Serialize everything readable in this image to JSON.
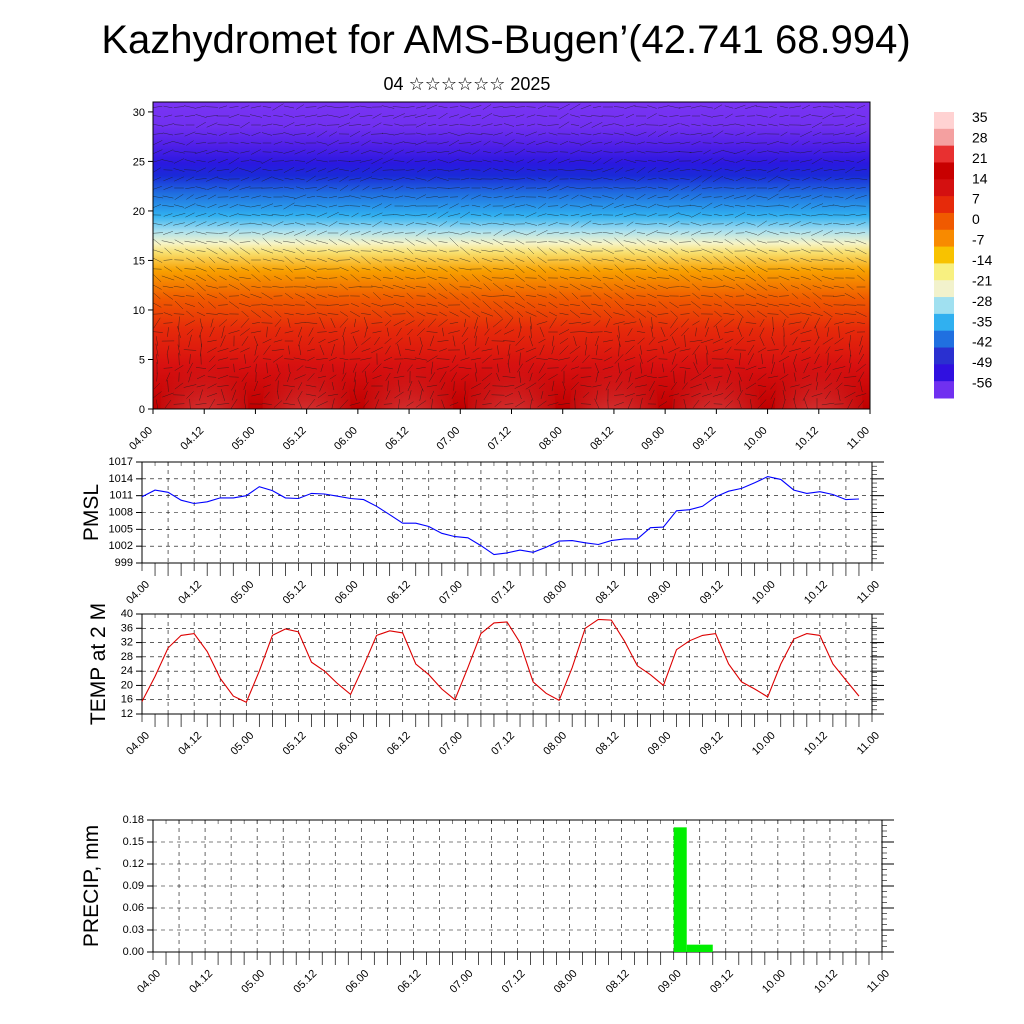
{
  "header": {
    "title": "Kazhydromet for AMS-Bugen’(42.741 68.994)",
    "subtitle": "04 ☆☆☆☆☆☆ 2025"
  },
  "x_ticks": [
    "04.00",
    "04.12",
    "05.00",
    "05.12",
    "06.00",
    "06.12",
    "07.00",
    "07.12",
    "08.00",
    "08.12",
    "09.00",
    "09.12",
    "10.00",
    "10.12",
    "11.00"
  ],
  "chart_data": [
    {
      "type": "heatmap",
      "name": "cross-section",
      "x_range": [
        0,
        168
      ],
      "ylim": [
        0,
        31
      ],
      "y_ticks": [
        0,
        5,
        10,
        15,
        20,
        25,
        30
      ],
      "colorbar": {
        "labels": [
          "35",
          "28",
          "21",
          "14",
          "7",
          "0",
          "-7",
          "-14",
          "-21",
          "-28",
          "-35",
          "-42",
          "-49",
          "-56"
        ],
        "colors": [
          "#ffd2d2",
          "#e83030",
          "#c80000",
          "#e62a0a",
          "#f05a00",
          "#f88a00",
          "#f8c200",
          "#f8f080",
          "#a0e0f0",
          "#30b0f0",
          "#2070e0",
          "#3040d8",
          "#3010e0",
          "#7030f0"
        ]
      },
      "warm_cores_x": [
        12,
        36,
        60,
        84,
        108,
        132,
        156
      ],
      "wind_vectors": true
    },
    {
      "type": "line",
      "ylabel": "PMSL",
      "ylim": [
        999,
        1017
      ],
      "y_ticks": [
        999,
        1002,
        1005,
        1008,
        1011,
        1014,
        1017
      ],
      "color": "#0000ff",
      "x": [
        0,
        3,
        6,
        9,
        12,
        15,
        18,
        21,
        24,
        27,
        30,
        33,
        36,
        39,
        42,
        45,
        48,
        51,
        54,
        57,
        60,
        63,
        66,
        69,
        72,
        75,
        78,
        81,
        84,
        87,
        90,
        93,
        96,
        99,
        102,
        105,
        108,
        111,
        114,
        117,
        120,
        123,
        126,
        129,
        132,
        135,
        138,
        141,
        144,
        147,
        150,
        153,
        156,
        159,
        162,
        165
      ],
      "values": [
        1010.8,
        1012.0,
        1011.6,
        1010.2,
        1009.6,
        1009.9,
        1010.6,
        1010.6,
        1011.0,
        1012.6,
        1011.9,
        1010.6,
        1010.5,
        1011.4,
        1011.3,
        1010.9,
        1010.5,
        1010.3,
        1009.1,
        1007.6,
        1006.1,
        1006.1,
        1005.5,
        1004.3,
        1003.7,
        1003.5,
        1002.1,
        1000.5,
        1000.8,
        1001.3,
        1000.9,
        1001.8,
        1002.9,
        1003.0,
        1002.6,
        1002.3,
        1003.0,
        1003.3,
        1003.3,
        1005.3,
        1005.4,
        1008.3,
        1008.5,
        1009.1,
        1010.8,
        1011.8,
        1012.3,
        1013.3,
        1014.4,
        1013.9,
        1012.0,
        1011.4,
        1011.7,
        1011.2,
        1010.3,
        1010.4
      ]
    },
    {
      "type": "line",
      "ylabel": "TEMP at 2 M",
      "ylim": [
        12,
        40
      ],
      "y_ticks": [
        12,
        16,
        20,
        24,
        28,
        32,
        36,
        40
      ],
      "color": "#dd0000",
      "x": [
        0,
        3,
        6,
        9,
        12,
        15,
        18,
        21,
        24,
        27,
        30,
        33,
        36,
        39,
        42,
        45,
        48,
        51,
        54,
        57,
        60,
        63,
        66,
        69,
        72,
        75,
        78,
        81,
        84,
        87,
        90,
        93,
        96,
        99,
        102,
        105,
        108,
        111,
        114,
        117,
        120,
        123,
        126,
        129,
        132,
        135,
        138,
        141,
        144,
        147,
        150,
        153,
        156,
        159,
        162,
        165
      ],
      "values": [
        15.5,
        22.5,
        30.5,
        34.0,
        34.5,
        29.5,
        22.0,
        17.0,
        15.3,
        24.0,
        34.0,
        35.8,
        35.0,
        26.5,
        24.0,
        20.5,
        17.5,
        25.5,
        34.0,
        35.3,
        34.7,
        26.0,
        23.0,
        19.0,
        16.0,
        25.0,
        34.5,
        37.5,
        37.8,
        32.0,
        21.0,
        17.8,
        15.8,
        25.0,
        36.0,
        38.5,
        38.3,
        32.5,
        25.5,
        23.0,
        20.0,
        30.0,
        32.5,
        34.0,
        34.5,
        26.0,
        21.0,
        19.0,
        16.8,
        26.0,
        33.0,
        34.5,
        34.0,
        26.0,
        21.5,
        17.0
      ]
    },
    {
      "type": "bar",
      "ylabel": "PRECIP, mm",
      "ylim": [
        0,
        0.18
      ],
      "y_ticks": [
        "0.00",
        "0.03",
        "0.06",
        "0.09",
        "0.12",
        "0.15",
        "0.18"
      ],
      "color": "#00ee00",
      "bars": [
        {
          "x_start": 120,
          "x_end": 123,
          "value": 0.17
        },
        {
          "x_start": 123,
          "x_end": 129,
          "value": 0.01
        }
      ]
    }
  ]
}
